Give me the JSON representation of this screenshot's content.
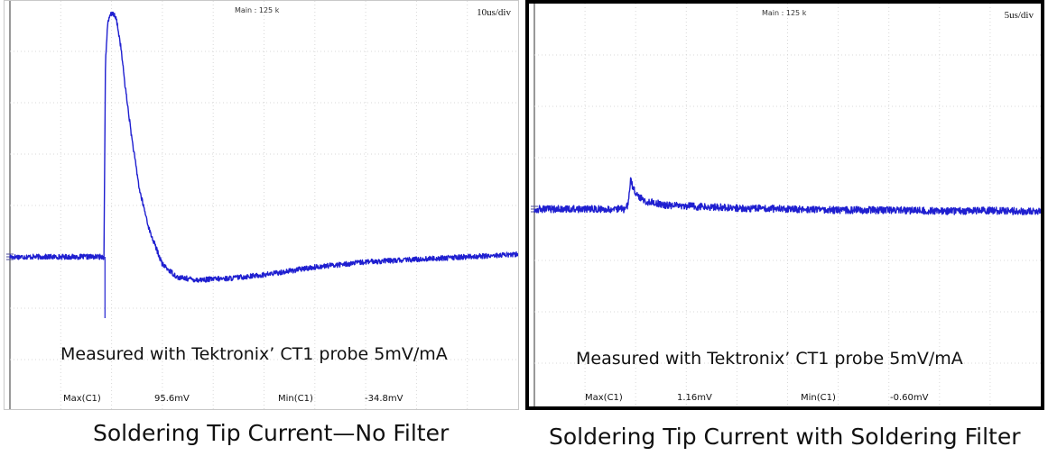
{
  "chart_data": [
    {
      "type": "line",
      "header_main": "Main : 125 k",
      "time_div": "10us/div",
      "annotation": "Measured with Tektronix’ CT1 probe 5mV/mA",
      "measurements": {
        "max_label": "Max(C1)",
        "max_value": "95.6mV",
        "min_label": "Min(C1)",
        "min_value": "-34.8mV"
      },
      "caption": "Soldering Tip Current—No Filter",
      "grid": true,
      "x_divisions": 10,
      "y_divisions": 8,
      "series": [
        {
          "color": "#1f1fd0",
          "noise": 0.05,
          "x": [
            0,
            1.85,
            1.88,
            1.92,
            1.97,
            2.03,
            2.1,
            2.18,
            2.27,
            2.4,
            2.55,
            2.75,
            3.0,
            3.3,
            3.7,
            4.3,
            5.0,
            6.0,
            7.0,
            8.0,
            9.0,
            10
          ],
          "y": [
            0,
            0.0,
            3.8,
            4.5,
            4.7,
            4.75,
            4.6,
            4.1,
            3.3,
            2.3,
            1.3,
            0.5,
            -0.15,
            -0.4,
            -0.45,
            -0.42,
            -0.35,
            -0.2,
            -0.1,
            -0.05,
            0.0,
            0.05
          ]
        }
      ]
    },
    {
      "type": "line",
      "header_main": "Main : 125 k",
      "time_div": "5us/div",
      "annotation": "Measured with Tektronix’ CT1 probe 5mV/mA",
      "measurements": {
        "max_label": "Max(C1)",
        "max_value": "1.16mV",
        "min_label": "Min(C1)",
        "min_value": "-0.60mV"
      },
      "caption": "Soldering Tip Current with Soldering Filter",
      "grid": true,
      "x_divisions": 10,
      "y_divisions": 8,
      "series": [
        {
          "color": "#1f1fd0",
          "noise": 0.07,
          "x": [
            0,
            1.8,
            1.85,
            1.9,
            2.0,
            2.2,
            2.6,
            3.2,
            4.0,
            5.0,
            6.0,
            7.0,
            8.0,
            9.0,
            10
          ],
          "y": [
            0,
            0.0,
            0.1,
            0.55,
            0.3,
            0.15,
            0.08,
            0.05,
            0.02,
            0.0,
            -0.02,
            -0.02,
            -0.04,
            -0.03,
            -0.05
          ]
        }
      ]
    }
  ]
}
